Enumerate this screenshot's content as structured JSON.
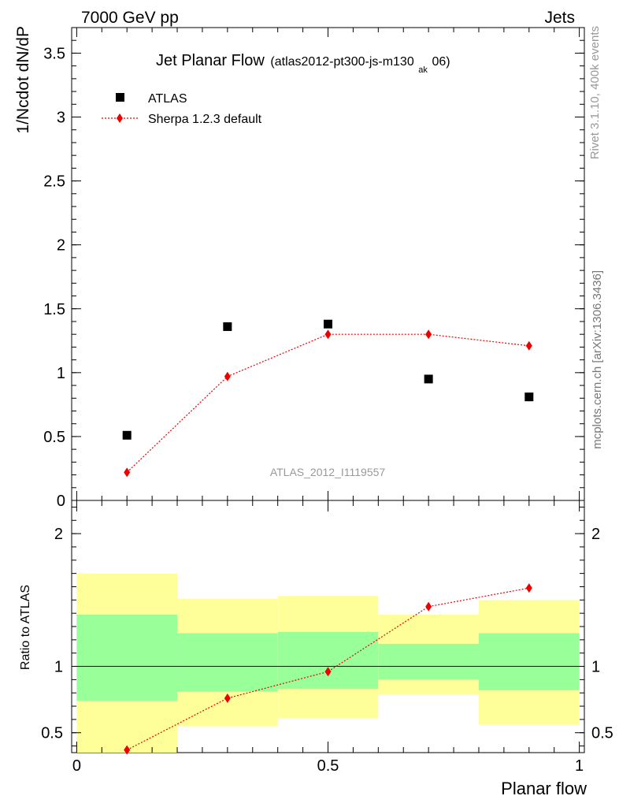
{
  "header": {
    "left": "7000 GeV pp",
    "right": "Jets"
  },
  "side_labels": {
    "rivet": "Rivet 3.1.10,  400k events",
    "mcplots": "mcplots.cern.ch [arXiv:1306.3436]"
  },
  "chart_data": [
    {
      "type": "scatter",
      "title": "Jet Planar Flow",
      "title_sub": "(atlas2012-pt300-js-m130",
      "title_subscript": "ak",
      "title_end": "06)",
      "ylabel": "1/Ncdot dN/dP",
      "xlabel": "",
      "watermark": "ATLAS_2012_I1119557",
      "xlim": [
        -0.01,
        1.01
      ],
      "ylim": [
        0,
        3.7
      ],
      "yticks": [
        0,
        0.5,
        1,
        1.5,
        2,
        2.5,
        3,
        3.5
      ],
      "ytick_labels": [
        "0",
        "0.5",
        "1",
        "1.5",
        "2",
        "2.5",
        "3",
        "3.5"
      ],
      "legend_position": "top-left",
      "series": [
        {
          "name": "ATLAS",
          "marker": "square",
          "color": "#000000",
          "x": [
            0.1,
            0.3,
            0.5,
            0.7,
            0.9
          ],
          "y": [
            0.51,
            1.36,
            1.38,
            0.95,
            0.81
          ]
        },
        {
          "name": "Sherpa 1.2.3 default",
          "marker": "diamond",
          "color": "#ee0000",
          "line": "dotted",
          "x": [
            0.1,
            0.3,
            0.5,
            0.7,
            0.9
          ],
          "y": [
            0.22,
            0.97,
            1.3,
            1.3,
            1.21
          ]
        }
      ]
    },
    {
      "type": "line",
      "ylabel": "Ratio to ATLAS",
      "xlabel": "Planar flow",
      "xlim": [
        -0.01,
        1.01
      ],
      "ylim": [
        0.35,
        2.25
      ],
      "xticks": [
        0,
        0.5,
        1
      ],
      "xtick_labels": [
        "0",
        "0.5",
        "1"
      ],
      "yticks": [
        0.5,
        1,
        2
      ],
      "ytick_labels": [
        "0.5",
        "1",
        "2"
      ],
      "bands": [
        {
          "x0": 0.0,
          "x1": 0.2,
          "yellow": [
            0.35,
            1.7
          ],
          "green": [
            0.74,
            1.39
          ]
        },
        {
          "x0": 0.2,
          "x1": 0.4,
          "yellow": [
            0.55,
            1.51
          ],
          "green": [
            0.81,
            1.25
          ]
        },
        {
          "x0": 0.4,
          "x1": 0.6,
          "yellow": [
            0.61,
            1.53
          ],
          "green": [
            0.83,
            1.26
          ]
        },
        {
          "x0": 0.6,
          "x1": 0.8,
          "yellow": [
            0.79,
            1.39
          ],
          "green": [
            0.9,
            1.17
          ]
        },
        {
          "x0": 0.8,
          "x1": 1.0,
          "yellow": [
            0.56,
            1.5
          ],
          "green": [
            0.82,
            1.25
          ]
        }
      ],
      "series": [
        {
          "name": "Sherpa 1.2.3 default",
          "marker": "diamond",
          "color": "#ee0000",
          "line": "dotted",
          "x": [
            0.1,
            0.3,
            0.5,
            0.7,
            0.9
          ],
          "y": [
            0.37,
            0.76,
            0.96,
            1.45,
            1.59
          ]
        }
      ]
    }
  ]
}
